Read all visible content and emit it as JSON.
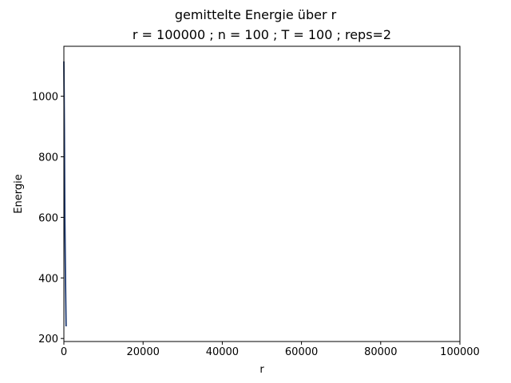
{
  "chart_data": {
    "type": "line",
    "title": "gemittelte Energie über r",
    "subtitle": "r = 100000 ; n = 100 ; T = 100 ; reps=2",
    "xlabel": "r",
    "ylabel": "Energie",
    "xlim": [
      0,
      100000
    ],
    "ylim": [
      190,
      1165
    ],
    "x_ticks": [
      0,
      20000,
      40000,
      60000,
      80000,
      100000
    ],
    "y_ticks": [
      200,
      400,
      600,
      800,
      1000
    ],
    "grid": false,
    "legend": "none",
    "series": [
      {
        "color": "#1f3b73",
        "x": [
          0,
          120,
          240,
          400,
          560
        ],
        "y": [
          1115,
          900,
          600,
          400,
          240
        ]
      }
    ]
  }
}
